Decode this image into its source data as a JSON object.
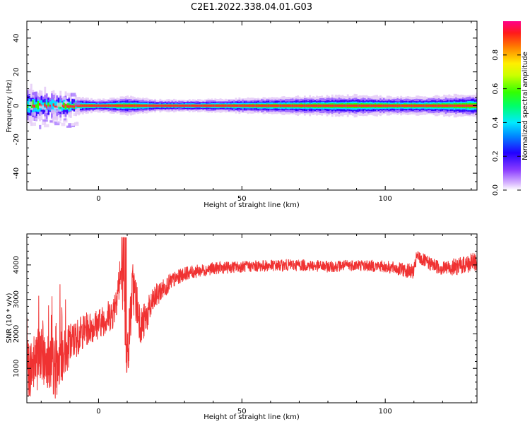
{
  "title": "C2E1.2022.338.04.01.G03",
  "chart_data": [
    {
      "type": "heatmap",
      "xlabel": "Height of straight line (km)",
      "ylabel": "Frequency (Hz)",
      "xlim": [
        -25,
        132
      ],
      "ylim": [
        -50,
        50
      ],
      "xticks": [
        0,
        50,
        100
      ],
      "yticks": [
        -40,
        -20,
        0,
        20,
        40
      ],
      "colorbar": {
        "label": "Normalized spectral amplitude",
        "range": [
          0,
          1
        ],
        "ticks": [
          0.0,
          0.2,
          0.4,
          0.6,
          0.8
        ]
      },
      "colors": {
        "background": "#ffffff",
        "faint": "#e4caf7",
        "low": "#9a63ff",
        "mid_low": "#2f00ff",
        "mid": "#00e4ff",
        "mid_high": "#2bff00",
        "high": "#ff2a2a"
      },
      "band_profile": [
        {
          "x": -25,
          "halfwidth": 5,
          "amp": 0.55
        },
        {
          "x": -15,
          "halfwidth": 4,
          "amp": 0.6
        },
        {
          "x": -10,
          "halfwidth": 3,
          "amp": 0.7
        },
        {
          "x": 0,
          "halfwidth": 2,
          "amp": 0.85
        },
        {
          "x": 10,
          "halfwidth": 3,
          "amp": 0.8
        },
        {
          "x": 20,
          "halfwidth": 2,
          "amp": 0.9
        },
        {
          "x": 35,
          "halfwidth": 2,
          "amp": 0.9
        },
        {
          "x": 50,
          "halfwidth": 2.5,
          "amp": 0.88
        },
        {
          "x": 70,
          "halfwidth": 3,
          "amp": 0.87
        },
        {
          "x": 90,
          "halfwidth": 3.5,
          "amp": 0.88
        },
        {
          "x": 100,
          "halfwidth": 3,
          "amp": 0.9
        },
        {
          "x": 115,
          "halfwidth": 3,
          "amp": 0.88
        },
        {
          "x": 132,
          "halfwidth": 4,
          "amp": 0.86
        }
      ]
    },
    {
      "type": "line",
      "xlabel": "Height of straight line (km)",
      "ylabel": "SNR (10 * v/v)",
      "xlim": [
        -25,
        132
      ],
      "ylim": [
        0,
        4900
      ],
      "xticks": [
        0,
        50,
        100
      ],
      "yticks": [
        1000,
        2000,
        3000,
        4000
      ],
      "line_color": "#f03232",
      "series": [
        {
          "x": [
            -25,
            -20,
            -15,
            -10,
            -5,
            0,
            5,
            8,
            10,
            12,
            15,
            20,
            25,
            30,
            40,
            50,
            60,
            70,
            80,
            90,
            100,
            110,
            111,
            115,
            120,
            125,
            132
          ],
          "y": [
            900,
            1400,
            1000,
            1700,
            2100,
            2300,
            2600,
            3800,
            1300,
            3400,
            2200,
            3100,
            3500,
            3750,
            3900,
            3950,
            3980,
            4000,
            3950,
            4000,
            3950,
            3800,
            4250,
            4050,
            3900,
            3950,
            4100
          ],
          "noise_amplitude": [
            900,
            900,
            900,
            600,
            500,
            450,
            500,
            700,
            800,
            800,
            600,
            350,
            250,
            200,
            180,
            170,
            170,
            170,
            170,
            170,
            180,
            220,
            200,
            200,
            220,
            250,
            300
          ]
        }
      ]
    }
  ]
}
